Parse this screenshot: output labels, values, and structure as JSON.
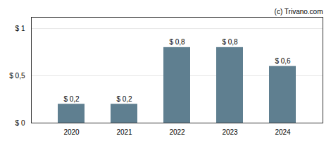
{
  "chart_data": {
    "type": "bar",
    "categories": [
      "2020",
      "2021",
      "2022",
      "2023",
      "2024"
    ],
    "values": [
      0.2,
      0.2,
      0.8,
      0.8,
      0.6
    ],
    "value_labels": [
      "$ 0,2",
      "$ 0,2",
      "$ 0,8",
      "$ 0,8",
      "$ 0,6"
    ],
    "data_labels": true,
    "color": "#5f7f90",
    "ylim": [
      0,
      1.12
    ],
    "yticks": [
      {
        "value": 0,
        "label": "$ 0"
      },
      {
        "value": 0.5,
        "label": "$ 0,5"
      },
      {
        "value": 1,
        "label": "$ 1"
      }
    ],
    "grid": true,
    "annotations": [
      "(c) Trivano.com"
    ]
  }
}
